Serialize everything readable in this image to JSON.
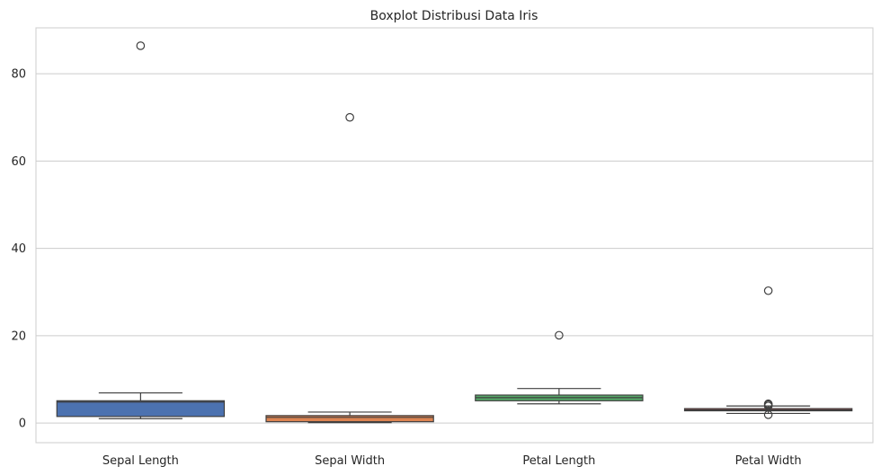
{
  "chart_data": {
    "type": "box",
    "title": "Boxplot Distribusi Data Iris",
    "xlabel": "",
    "ylabel": "",
    "ylim": [
      -4.5,
      90.5
    ],
    "yticks": [
      0,
      20,
      40,
      60,
      80
    ],
    "grid": "horizontal",
    "categories": [
      "Sepal Length",
      "Sepal Width",
      "Petal Length",
      "Petal Width"
    ],
    "colors": [
      "#4c72b0",
      "#dd8452",
      "#55a868",
      "#c44e52"
    ],
    "boxes": [
      {
        "category": "Sepal Length",
        "whisker_low": 1.0,
        "q1": 1.5,
        "median": 4.8,
        "q3": 5.1,
        "whisker_high": 6.9,
        "outliers": [
          86.4
        ]
      },
      {
        "category": "Sepal Width",
        "whisker_low": 0.1,
        "q1": 0.3,
        "median": 1.3,
        "q3": 1.7,
        "whisker_high": 2.5,
        "outliers": [
          70.0
        ]
      },
      {
        "category": "Petal Length",
        "whisker_low": 4.4,
        "q1": 5.1,
        "median": 5.8,
        "q3": 6.4,
        "whisker_high": 7.9,
        "outliers": [
          20.1
        ]
      },
      {
        "category": "Petal Width",
        "whisker_low": 2.2,
        "q1": 2.8,
        "median": 3.0,
        "q3": 3.3,
        "whisker_high": 3.9,
        "outliers": [
          30.3,
          4.4,
          4.2,
          3.9,
          1.9
        ]
      }
    ]
  }
}
